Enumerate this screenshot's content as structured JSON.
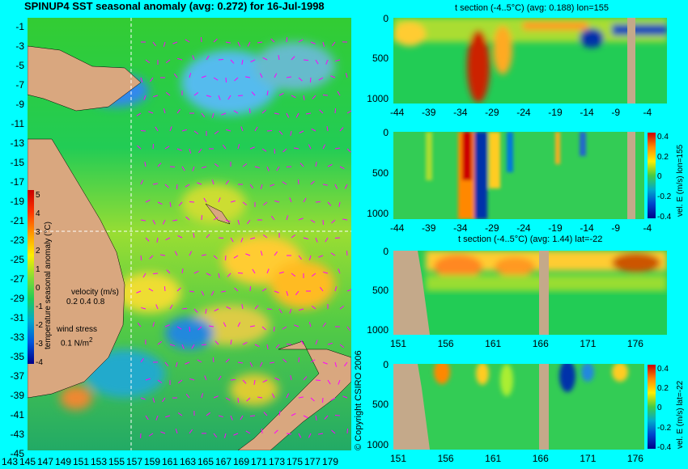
{
  "map": {
    "title": "SPINUP4 SST seasonal anomaly (avg: 0.272) for 16-Jul-1998",
    "lat_ticks": [
      "-1",
      "-3",
      "-5",
      "-7",
      "-9",
      "-11",
      "-13",
      "-15",
      "-17",
      "-19",
      "-21",
      "-23",
      "-25",
      "-27",
      "-29",
      "-31",
      "-33",
      "-35",
      "-37",
      "-39",
      "-41",
      "-43",
      "-45"
    ],
    "lon_ticks": [
      "143",
      "145",
      "147",
      "149",
      "151",
      "153",
      "155",
      "157",
      "159",
      "161",
      "163",
      "165",
      "167",
      "169",
      "171",
      "173",
      "175",
      "177",
      "179"
    ],
    "colorbar_label": "temperature seasonal anomaly (°C)",
    "colorbar_ticks": [
      "5",
      "4",
      "3",
      "2",
      "1",
      "0",
      "-1",
      "-2",
      "-3",
      "-4"
    ],
    "velocity_label": "velocity (m/s)",
    "velocity_scale": "0.2 0.4 0.8",
    "wind_label": "wind stress",
    "wind_units": "0.1 N/m",
    "wind_units_sup": "2",
    "copyright": "© Copyright CSIRO 2006"
  },
  "colors": {
    "background": "#00ffff",
    "land": "#d9a77f",
    "section_land": "#c4a98a",
    "vectors": "#ff00ff",
    "crosshair": "#ffffff"
  },
  "chart_data": [
    {
      "type": "heatmap",
      "title": "SPINUP4 SST seasonal anomaly (avg: 0.272) for 16-Jul-1998",
      "xlim": [
        143,
        180
      ],
      "ylim": [
        -45,
        0
      ],
      "colorbar": {
        "label": "temperature seasonal anomaly (°C)",
        "range": [
          -4,
          5
        ]
      }
    },
    {
      "type": "heatmap",
      "title": "t section (-4..5°C) (avg: 0.188) lon=155",
      "x_ticks": [
        "-44",
        "-39",
        "-34",
        "-29",
        "-24",
        "-19",
        "-14",
        "-9",
        "-4"
      ],
      "y_ticks": [
        "0",
        "500",
        "1000"
      ]
    },
    {
      "type": "heatmap",
      "title": "",
      "x_ticks": [
        "-44",
        "-39",
        "-34",
        "-29",
        "-24",
        "-19",
        "-14",
        "-9",
        "-4"
      ],
      "y_ticks": [
        "0",
        "500",
        "1000"
      ],
      "colorbar": {
        "label": "vel. E (m/s) lon=155",
        "ticks": [
          "0.4",
          "0.2",
          "0",
          "-0.2",
          "-0.4"
        ]
      }
    },
    {
      "type": "heatmap",
      "title": "t section (-4..5°C) (avg: 1.44) lat=-22",
      "x_ticks": [
        "151",
        "156",
        "161",
        "166",
        "171",
        "176"
      ],
      "y_ticks": [
        "0",
        "500",
        "1000"
      ]
    },
    {
      "type": "heatmap",
      "title": "",
      "x_ticks": [
        "151",
        "156",
        "161",
        "166",
        "171",
        "176"
      ],
      "y_ticks": [
        "0",
        "500",
        "1000"
      ],
      "colorbar": {
        "label": "vel. E (m/s) lat=-22",
        "ticks": [
          "0.4",
          "0.2",
          "0",
          "-0.2",
          "-0.4"
        ]
      }
    }
  ]
}
